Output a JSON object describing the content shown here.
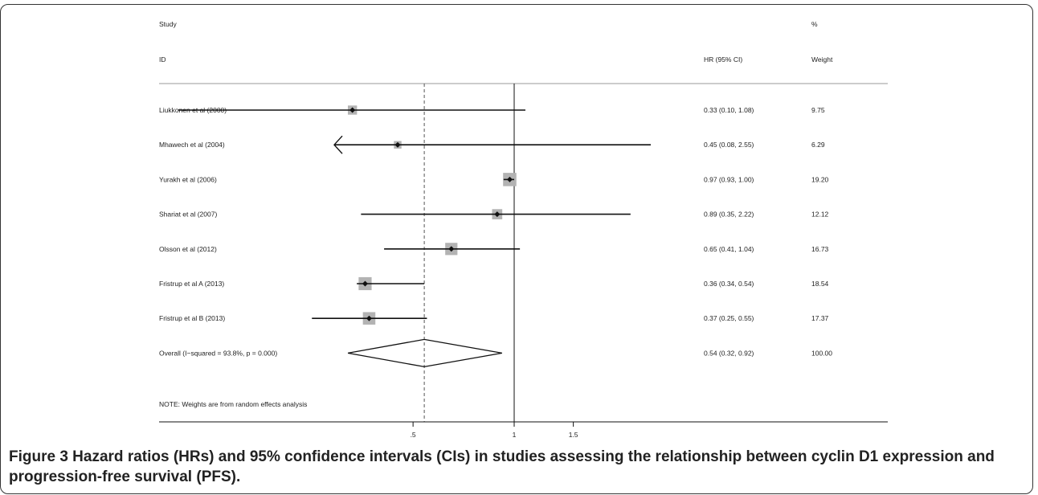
{
  "chart_data": {
    "type": "forest",
    "header": {
      "col1_line1": "Study",
      "col1_line2": "ID",
      "col2_line2": "HR (95% CI)",
      "col3_line1": "%",
      "col3_line2": "Weight"
    },
    "studies": [
      {
        "id": "Liukkonen et al (2000)",
        "hr": 0.33,
        "lower": 0.1,
        "upper": 1.08,
        "hr_text": "0.33 (0.10, 1.08)",
        "weight": 9.75,
        "weight_text": "9.75"
      },
      {
        "id": "Mhawech et al (2004)",
        "hr": 0.45,
        "lower": 0.08,
        "upper": 2.55,
        "hr_text": "0.45 (0.08, 2.55)",
        "weight": 6.29,
        "weight_text": "6.29",
        "lower_truncated": true
      },
      {
        "id": "Yurakh et al (2006)",
        "hr": 0.97,
        "lower": 0.93,
        "upper": 1.0,
        "hr_text": "0.97 (0.93, 1.00)",
        "weight": 19.2,
        "weight_text": "19.20"
      },
      {
        "id": "Shariat et al (2007)",
        "hr": 0.89,
        "lower": 0.35,
        "upper": 2.22,
        "hr_text": "0.89 (0.35, 2.22)",
        "weight": 12.12,
        "weight_text": "12.12"
      },
      {
        "id": "Olsson et al (2012)",
        "hr": 0.65,
        "lower": 0.41,
        "upper": 1.04,
        "hr_text": "0.65 (0.41, 1.04)",
        "weight": 16.73,
        "weight_text": "16.73"
      },
      {
        "id": "Fristrup et al A (2013)",
        "hr": 0.36,
        "lower": 0.34,
        "upper": 0.54,
        "hr_text": "0.36 (0.34, 0.54)",
        "weight": 18.54,
        "weight_text": "18.54"
      },
      {
        "id": "Fristrup et al B (2013)",
        "hr": 0.37,
        "lower": 0.25,
        "upper": 0.55,
        "hr_text": "0.37 (0.25, 0.55)",
        "weight": 17.37,
        "weight_text": "17.37"
      }
    ],
    "overall": {
      "id": "Overall  (I−squared = 93.8%, p = 0.000)",
      "hr": 0.54,
      "lower": 0.32,
      "upper": 0.92,
      "hr_text": "0.54 (0.32, 0.92)",
      "weight_text": "100.00"
    },
    "note": "NOTE: Weights are from random effects analysis",
    "x_scale": "log",
    "x_ticks": [
      {
        "value": 0.5,
        "label": ".5"
      },
      {
        "value": 1,
        "label": "1"
      },
      {
        "value": 1.5,
        "label": "1.5"
      }
    ],
    "reference_line": 1,
    "overall_line": 0.54
  },
  "caption": {
    "label": "Figure 3",
    "text": " Hazard ratios (HRs) and 95% confidence intervals (CIs) in studies assessing the relationship between cyclin D1 expression and progression-free survival (PFS)."
  },
  "colors": {
    "box": "#b3b3b3",
    "line": "#111111",
    "dashed": "#555555",
    "rule": "#999999"
  }
}
